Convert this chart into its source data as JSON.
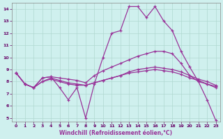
{
  "xlabel": "Windchill (Refroidissement éolien,°C)",
  "background_color": "#cff0ee",
  "grid_color": "#b0d8d0",
  "line_color": "#993399",
  "xlim": [
    -0.5,
    23.5
  ],
  "ylim": [
    4.7,
    14.5
  ],
  "xticks": [
    0,
    1,
    2,
    3,
    4,
    5,
    6,
    7,
    8,
    9,
    10,
    11,
    12,
    13,
    14,
    15,
    16,
    17,
    18,
    19,
    20,
    21,
    22,
    23
  ],
  "yticks": [
    5,
    6,
    7,
    8,
    9,
    10,
    11,
    12,
    13,
    14
  ],
  "curves": [
    [
      8.7,
      7.8,
      7.5,
      8.3,
      8.4,
      7.5,
      6.5,
      7.5,
      5.0,
      7.8,
      10.0,
      12.0,
      12.2,
      14.2,
      14.2,
      13.3,
      14.2,
      13.0,
      12.2,
      10.5,
      9.2,
      8.0,
      6.5,
      4.8
    ],
    [
      8.7,
      7.8,
      7.5,
      8.3,
      8.4,
      8.3,
      8.2,
      8.1,
      7.9,
      8.5,
      8.9,
      9.2,
      9.5,
      9.8,
      10.1,
      10.3,
      10.5,
      10.5,
      10.3,
      9.5,
      8.5,
      8.0,
      7.8,
      7.6
    ],
    [
      8.7,
      7.8,
      7.5,
      8.0,
      8.3,
      8.1,
      7.9,
      7.8,
      7.7,
      7.9,
      8.1,
      8.3,
      8.5,
      8.8,
      9.0,
      9.1,
      9.2,
      9.1,
      9.0,
      8.8,
      8.5,
      8.2,
      8.0,
      7.7
    ],
    [
      8.7,
      7.8,
      7.5,
      8.0,
      8.2,
      8.0,
      7.8,
      7.7,
      7.7,
      7.9,
      8.1,
      8.3,
      8.5,
      8.7,
      8.8,
      8.9,
      9.0,
      8.9,
      8.8,
      8.6,
      8.3,
      8.1,
      7.8,
      7.5
    ]
  ]
}
